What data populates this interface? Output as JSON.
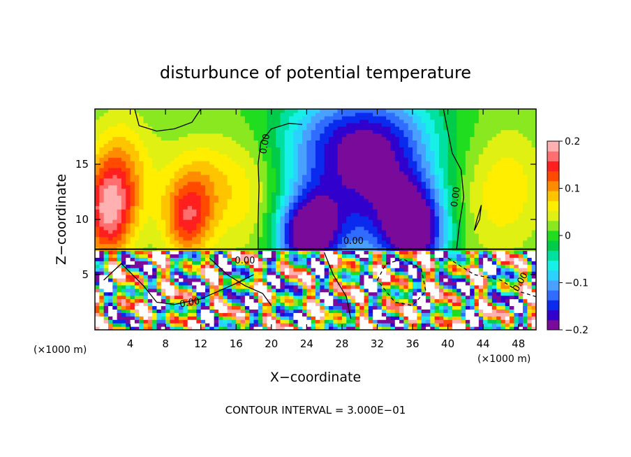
{
  "chart_data": {
    "type": "heatmap",
    "title": "disturbunce of potential temperature",
    "xlabel": "X−coordinate",
    "ylabel": "Z−coordinate",
    "x_unit": "(×1000 m)",
    "y_unit": "(×1000 m)",
    "footer": "CONTOUR INTERVAL = 3.000E−01",
    "xlim": [
      0,
      50
    ],
    "ylim": [
      0,
      20
    ],
    "x_ticks": [
      4,
      8,
      12,
      16,
      20,
      24,
      28,
      32,
      36,
      40,
      44,
      48
    ],
    "y_ticks": [
      5,
      10,
      15
    ],
    "colorbar": {
      "min": -0.2,
      "max": 0.2,
      "tick_values": [
        0.2,
        0.1,
        0,
        -0.1,
        -0.2
      ],
      "tick_labels": [
        "0.2",
        "0.1",
        "0",
        "−0.1",
        "−0.2"
      ],
      "colors": [
        "#7a0a9a",
        "#3200cc",
        "#0a2aee",
        "#2f6cff",
        "#4aa0ff",
        "#2bd1ff",
        "#16f0e6",
        "#00e0a0",
        "#00cc4a",
        "#20dd20",
        "#8ae820",
        "#dff012",
        "#ffee00",
        "#ffc400",
        "#ff8c00",
        "#ff4a00",
        "#ff1f1f",
        "#ff6f6f",
        "#ffb0b0"
      ]
    },
    "contour_label": "0.00",
    "blobs": [
      {
        "x": 1.5,
        "z": 10.5,
        "v": 0.15,
        "sx": 2.0,
        "sz": 3.0
      },
      {
        "x": 3.0,
        "z": 14.5,
        "v": 0.08,
        "sx": 2.5,
        "sz": 3.5
      },
      {
        "x": 10.5,
        "z": 10.0,
        "v": 0.12,
        "sx": 2.0,
        "sz": 2.5
      },
      {
        "x": 12.0,
        "z": 13.5,
        "v": 0.06,
        "sx": 3.0,
        "sz": 3.0
      },
      {
        "x": 18.0,
        "z": 12.0,
        "v": 0.05,
        "sx": 3.0,
        "sz": 4.0
      },
      {
        "x": 24.0,
        "z": 8.5,
        "v": -0.2,
        "sx": 2.5,
        "sz": 2.5
      },
      {
        "x": 26.0,
        "z": 13.0,
        "v": -0.1,
        "sx": 4.0,
        "sz": 4.5
      },
      {
        "x": 33.0,
        "z": 12.5,
        "v": -0.14,
        "sx": 4.0,
        "sz": 5.0
      },
      {
        "x": 36.5,
        "z": 9.0,
        "v": -0.18,
        "sx": 2.5,
        "sz": 3.0
      },
      {
        "x": 30.0,
        "z": 18.0,
        "v": -0.1,
        "sx": 6.0,
        "sz": 3.0
      },
      {
        "x": 43.0,
        "z": 11.0,
        "v": 0.02,
        "sx": 3.0,
        "sz": 4.0
      },
      {
        "x": 47.0,
        "z": 13.0,
        "v": 0.05,
        "sx": 3.0,
        "sz": 4.0
      }
    ]
  }
}
